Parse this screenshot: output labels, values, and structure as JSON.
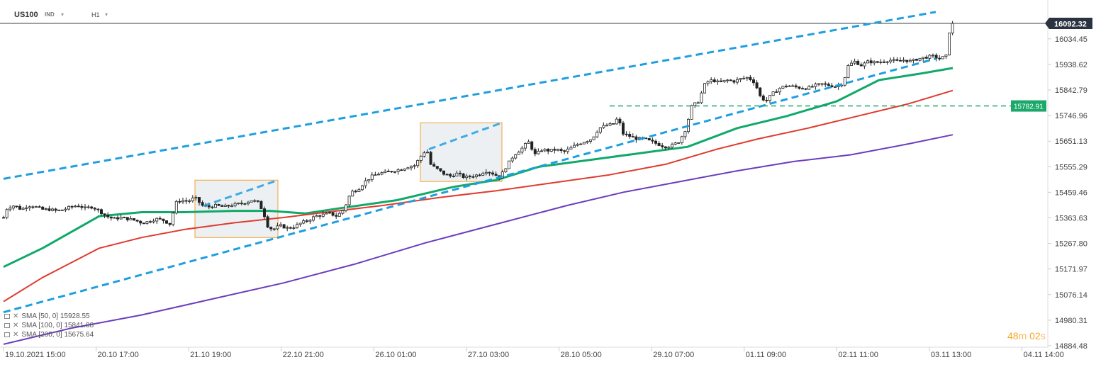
{
  "header": {
    "symbol": "US100",
    "symbol_type": "IND",
    "timeframe": "H1"
  },
  "colors": {
    "candle": "#222222",
    "sma50": "#10a96a",
    "sma100": "#e03a2f",
    "sma200": "#6a3dbd",
    "channel": "#1e9fe0",
    "box": "#f0a030",
    "level": "#1ba86b",
    "last_price_bg": "#2b3340"
  },
  "chart_data": {
    "type": "candlestick",
    "y_ticks": [
      "16034.45",
      "15938.62",
      "15842.79",
      "15746.96",
      "15651.13",
      "15555.29",
      "15459.46",
      "15363.63",
      "15267.80",
      "15171.97",
      "15076.14",
      "14980.31",
      "14884.48"
    ],
    "ylim": [
      14884.48,
      16092.32
    ],
    "x_ticks": [
      "19.10.2021  15:00",
      "20.10  17:00",
      "21.10  19:00",
      "22.10  21:00",
      "26.10  01:00",
      "27.10  03:00",
      "28.10  05:00",
      "29.10  07:00",
      "01.11  09:00",
      "02.11  11:00",
      "03.11  13:00",
      "04.11  14:00"
    ],
    "last_price": "16092.32",
    "horizontal_level": "15782.91",
    "close_path": [
      [
        0,
        15330
      ],
      [
        10,
        15400
      ],
      [
        20,
        15410
      ],
      [
        30,
        15395
      ],
      [
        40,
        15410
      ],
      [
        50,
        15405
      ],
      [
        60,
        15395
      ],
      [
        70,
        15395
      ],
      [
        80,
        15390
      ],
      [
        90,
        15395
      ],
      [
        100,
        15405
      ],
      [
        110,
        15410
      ],
      [
        120,
        15400
      ],
      [
        130,
        15405
      ],
      [
        140,
        15390
      ],
      [
        150,
        15370
      ],
      [
        160,
        15360
      ],
      [
        170,
        15365
      ],
      [
        180,
        15360
      ],
      [
        190,
        15355
      ],
      [
        200,
        15345
      ],
      [
        210,
        15350
      ],
      [
        220,
        15360
      ],
      [
        230,
        15355
      ],
      [
        240,
        15340
      ],
      [
        248,
        15420
      ],
      [
        255,
        15430
      ],
      [
        265,
        15425
      ],
      [
        275,
        15440
      ],
      [
        285,
        15410
      ],
      [
        295,
        15405
      ],
      [
        305,
        15410
      ],
      [
        315,
        15405
      ],
      [
        325,
        15410
      ],
      [
        335,
        15415
      ],
      [
        345,
        15420
      ],
      [
        355,
        15430
      ],
      [
        365,
        15420
      ],
      [
        372,
        15380
      ],
      [
        378,
        15330
      ],
      [
        385,
        15320
      ],
      [
        395,
        15335
      ],
      [
        405,
        15325
      ],
      [
        415,
        15330
      ],
      [
        425,
        15345
      ],
      [
        435,
        15355
      ],
      [
        445,
        15370
      ],
      [
        455,
        15375
      ],
      [
        465,
        15380
      ],
      [
        475,
        15370
      ],
      [
        485,
        15395
      ],
      [
        495,
        15460
      ],
      [
        505,
        15470
      ],
      [
        515,
        15500
      ],
      [
        525,
        15520
      ],
      [
        535,
        15530
      ],
      [
        545,
        15535
      ],
      [
        555,
        15540
      ],
      [
        565,
        15545
      ],
      [
        575,
        15555
      ],
      [
        585,
        15560
      ],
      [
        595,
        15600
      ],
      [
        602,
        15620
      ],
      [
        608,
        15560
      ],
      [
        615,
        15550
      ],
      [
        625,
        15530
      ],
      [
        635,
        15520
      ],
      [
        645,
        15530
      ],
      [
        655,
        15515
      ],
      [
        665,
        15520
      ],
      [
        675,
        15525
      ],
      [
        685,
        15540
      ],
      [
        695,
        15530
      ],
      [
        705,
        15515
      ],
      [
        715,
        15560
      ],
      [
        725,
        15600
      ],
      [
        735,
        15620
      ],
      [
        745,
        15650
      ],
      [
        755,
        15600
      ],
      [
        765,
        15620
      ],
      [
        775,
        15615
      ],
      [
        785,
        15620
      ],
      [
        795,
        15610
      ],
      [
        805,
        15625
      ],
      [
        815,
        15640
      ],
      [
        825,
        15650
      ],
      [
        835,
        15660
      ],
      [
        845,
        15700
      ],
      [
        855,
        15710
      ],
      [
        865,
        15715
      ],
      [
        872,
        15740
      ],
      [
        878,
        15680
      ],
      [
        888,
        15670
      ],
      [
        898,
        15660
      ],
      [
        908,
        15660
      ],
      [
        918,
        15650
      ],
      [
        928,
        15640
      ],
      [
        938,
        15630
      ],
      [
        948,
        15635
      ],
      [
        958,
        15650
      ],
      [
        968,
        15700
      ],
      [
        975,
        15780
      ],
      [
        985,
        15800
      ],
      [
        995,
        15870
      ],
      [
        1005,
        15880
      ],
      [
        1015,
        15870
      ],
      [
        1025,
        15880
      ],
      [
        1035,
        15875
      ],
      [
        1045,
        15885
      ],
      [
        1055,
        15890
      ],
      [
        1065,
        15870
      ],
      [
        1072,
        15820
      ],
      [
        1080,
        15800
      ],
      [
        1090,
        15830
      ],
      [
        1100,
        15850
      ],
      [
        1110,
        15860
      ],
      [
        1120,
        15855
      ],
      [
        1130,
        15850
      ],
      [
        1140,
        15850
      ],
      [
        1150,
        15860
      ],
      [
        1160,
        15865
      ],
      [
        1170,
        15860
      ],
      [
        1180,
        15855
      ],
      [
        1190,
        15870
      ],
      [
        1195,
        15930
      ],
      [
        1205,
        15950
      ],
      [
        1215,
        15935
      ],
      [
        1225,
        15950
      ],
      [
        1235,
        15945
      ],
      [
        1245,
        15950
      ],
      [
        1255,
        15955
      ],
      [
        1265,
        15950
      ],
      [
        1275,
        15955
      ],
      [
        1285,
        15950
      ],
      [
        1295,
        15960
      ],
      [
        1305,
        15965
      ],
      [
        1315,
        15970
      ],
      [
        1325,
        15960
      ],
      [
        1335,
        15970
      ],
      [
        1339,
        16060
      ],
      [
        1344,
        16092
      ]
    ],
    "series": [
      {
        "name": "SMA  [50,  0]",
        "value": "15928.55",
        "path": [
          [
            5,
            15180
          ],
          [
            60,
            15250
          ],
          [
            140,
            15370
          ],
          [
            200,
            15385
          ],
          [
            260,
            15385
          ],
          [
            330,
            15390
          ],
          [
            380,
            15390
          ],
          [
            430,
            15380
          ],
          [
            480,
            15400
          ],
          [
            560,
            15430
          ],
          [
            640,
            15480
          ],
          [
            700,
            15505
          ],
          [
            760,
            15555
          ],
          [
            830,
            15580
          ],
          [
            900,
            15605
          ],
          [
            970,
            15630
          ],
          [
            1040,
            15700
          ],
          [
            1110,
            15745
          ],
          [
            1180,
            15800
          ],
          [
            1240,
            15880
          ],
          [
            1300,
            15905
          ],
          [
            1344,
            15925
          ]
        ]
      },
      {
        "name": "SMA  [100,  0]",
        "value": "15841.88",
        "path": [
          [
            5,
            15050
          ],
          [
            60,
            15140
          ],
          [
            140,
            15250
          ],
          [
            200,
            15290
          ],
          [
            260,
            15320
          ],
          [
            330,
            15345
          ],
          [
            400,
            15365
          ],
          [
            460,
            15385
          ],
          [
            540,
            15410
          ],
          [
            620,
            15440
          ],
          [
            700,
            15465
          ],
          [
            780,
            15495
          ],
          [
            860,
            15525
          ],
          [
            940,
            15565
          ],
          [
            1010,
            15620
          ],
          [
            1070,
            15660
          ],
          [
            1140,
            15700
          ],
          [
            1210,
            15745
          ],
          [
            1280,
            15790
          ],
          [
            1344,
            15841
          ]
        ]
      },
      {
        "name": "SMA  [200,  0]",
        "value": "15675.64",
        "path": [
          [
            5,
            14890
          ],
          [
            100,
            14950
          ],
          [
            200,
            15000
          ],
          [
            300,
            15060
          ],
          [
            400,
            15120
          ],
          [
            500,
            15190
          ],
          [
            600,
            15270
          ],
          [
            700,
            15340
          ],
          [
            800,
            15410
          ],
          [
            880,
            15460
          ],
          [
            960,
            15500
          ],
          [
            1040,
            15540
          ],
          [
            1120,
            15575
          ],
          [
            1200,
            15600
          ],
          [
            1280,
            15640
          ],
          [
            1344,
            15675
          ]
        ]
      }
    ],
    "channel_upper": [
      [
        5,
        15510
      ],
      [
        1320,
        16135
      ]
    ],
    "channel_lower": [
      [
        5,
        15010
      ],
      [
        1320,
        15960
      ]
    ],
    "boxes": [
      {
        "x0": 275,
        "x1": 392,
        "y0": 15290,
        "y1": 15505
      },
      {
        "x0": 593,
        "x1": 708,
        "y0": 15500,
        "y1": 15720
      }
    ]
  },
  "timer": {
    "minutes": "48",
    "minutes_unit": "m",
    "seconds": "02",
    "seconds_unit": "s"
  }
}
